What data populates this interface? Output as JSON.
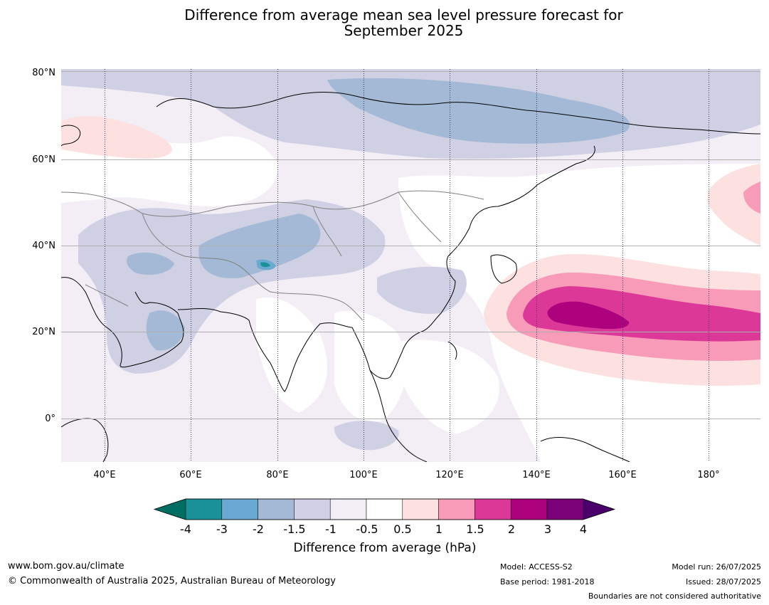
{
  "title_line1": "Difference from average mean sea level pressure forecast for",
  "title_line2": "September 2025",
  "map": {
    "lat_labels": [
      "80°N",
      "60°N",
      "40°N",
      "20°N",
      "0°"
    ],
    "lon_labels": [
      "40°E",
      "60°E",
      "80°E",
      "100°E",
      "120°E",
      "140°E",
      "160°E",
      "180°"
    ]
  },
  "colorbar": {
    "ticks": [
      "-4",
      "-3",
      "-2",
      "-1.5",
      "-1",
      "-0.5",
      "0.5",
      "1",
      "1.5",
      "2",
      "3",
      "4"
    ],
    "colors": [
      "#006d63",
      "#1a9098",
      "#6aa9d1",
      "#a4b9d6",
      "#cfd0e3",
      "#f3edf6",
      "#ffffff",
      "#fde0e0",
      "#f89bb8",
      "#dc3898",
      "#ae017e",
      "#7a0177",
      "#49006a"
    ],
    "label": "Difference from average (hPa)"
  },
  "footer": {
    "url": "www.bom.gov.au/climate",
    "copyright": "© Commonwealth of Australia 2025, Australian Bureau of Meteorology",
    "model": "Model: ACCESS-S2",
    "base_period": "Base period: 1981-2018",
    "model_run": "Model run: 26/07/2025",
    "issued": "Issued: 28/07/2025",
    "disclaimer": "Boundaries are not considered authoritative"
  }
}
